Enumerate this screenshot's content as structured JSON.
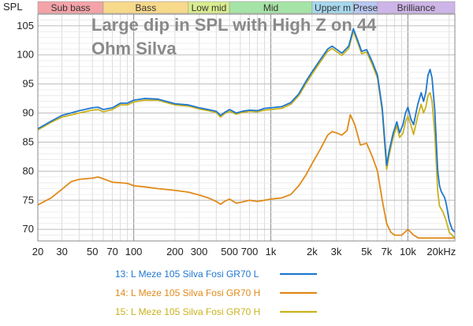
{
  "chart_data": {
    "type": "line",
    "title_lines": [
      "Large dip in SPL with High Z on 44",
      "Ohm Silva"
    ],
    "ylabel": "SPL",
    "xlabel": "",
    "x_scale": "log",
    "xlim": [
      20,
      22000
    ],
    "ylim": [
      68,
      107
    ],
    "x_ticks": [
      {
        "v": 20,
        "label": "20"
      },
      {
        "v": 30,
        "label": "30"
      },
      {
        "v": 50,
        "label": "50"
      },
      {
        "v": 70,
        "label": "70"
      },
      {
        "v": 100,
        "label": "100"
      },
      {
        "v": 200,
        "label": "200"
      },
      {
        "v": 300,
        "label": "300"
      },
      {
        "v": 500,
        "label": "500"
      },
      {
        "v": 700,
        "label": "700"
      },
      {
        "v": 1000,
        "label": "1k"
      },
      {
        "v": 2000,
        "label": "2k"
      },
      {
        "v": 3000,
        "label": "3k"
      },
      {
        "v": 5000,
        "label": "5k"
      },
      {
        "v": 7000,
        "label": "7k"
      },
      {
        "v": 10000,
        "label": "10k"
      },
      {
        "v": 20000,
        "label": "20kHz"
      }
    ],
    "y_ticks": [
      {
        "v": 70,
        "label": "70"
      },
      {
        "v": 75,
        "label": "75"
      },
      {
        "v": 80,
        "label": "80"
      },
      {
        "v": 85,
        "label": "85"
      },
      {
        "v": 90,
        "label": "90"
      },
      {
        "v": 95,
        "label": "95"
      },
      {
        "v": 100,
        "label": "100"
      },
      {
        "v": 105,
        "label": "105"
      }
    ],
    "bands": [
      {
        "label": "Sub bass",
        "from": 20,
        "to": 60,
        "color": "#f4a3a8"
      },
      {
        "label": "Bass",
        "from": 60,
        "to": 250,
        "color": "#f7d98b"
      },
      {
        "label": "Low mid",
        "from": 250,
        "to": 500,
        "color": "#d9ec8f"
      },
      {
        "label": "Mid",
        "from": 500,
        "to": 2000,
        "color": "#a6e3a6"
      },
      {
        "label": "Upper m",
        "from": 2000,
        "to": 4000,
        "color": "#a6d8ee"
      },
      {
        "label": "Prese",
        "from": 4000,
        "to": 6000,
        "color": "#b9c8f2"
      },
      {
        "label": "Brilliance",
        "from": 6000,
        "to": 22000,
        "color": "#cdb5e8"
      }
    ],
    "grid": true,
    "legend_placement": "bottom",
    "series": [
      {
        "name": "13: L Meze 105 Silva Fosi GR70 L",
        "color": "#1f77d0",
        "points": [
          [
            20,
            87.3
          ],
          [
            25,
            88.6
          ],
          [
            30,
            89.6
          ],
          [
            40,
            90.4
          ],
          [
            50,
            90.9
          ],
          [
            55,
            91.0
          ],
          [
            60,
            90.6
          ],
          [
            70,
            90.9
          ],
          [
            80,
            91.7
          ],
          [
            90,
            91.7
          ],
          [
            100,
            92.2
          ],
          [
            120,
            92.5
          ],
          [
            150,
            92.4
          ],
          [
            200,
            91.6
          ],
          [
            250,
            91.4
          ],
          [
            300,
            90.9
          ],
          [
            350,
            90.6
          ],
          [
            400,
            90.3
          ],
          [
            430,
            89.6
          ],
          [
            460,
            90.1
          ],
          [
            500,
            90.6
          ],
          [
            560,
            90.0
          ],
          [
            620,
            90.3
          ],
          [
            700,
            90.5
          ],
          [
            800,
            90.4
          ],
          [
            900,
            90.8
          ],
          [
            1000,
            90.9
          ],
          [
            1200,
            91.1
          ],
          [
            1400,
            91.8
          ],
          [
            1600,
            93.3
          ],
          [
            1800,
            95.4
          ],
          [
            2000,
            97.1
          ],
          [
            2300,
            99.2
          ],
          [
            2600,
            101.0
          ],
          [
            2800,
            101.5
          ],
          [
            3000,
            101.0
          ],
          [
            3300,
            100.3
          ],
          [
            3700,
            101.5
          ],
          [
            4000,
            104.5
          ],
          [
            4300,
            102.5
          ],
          [
            4600,
            100.6
          ],
          [
            5000,
            100.9
          ],
          [
            5500,
            98.8
          ],
          [
            6000,
            96.5
          ],
          [
            6500,
            90.8
          ],
          [
            6800,
            84.8
          ],
          [
            7000,
            81.0
          ],
          [
            7300,
            83.5
          ],
          [
            7800,
            86.5
          ],
          [
            8300,
            88.5
          ],
          [
            8700,
            86.6
          ],
          [
            9200,
            88.0
          ],
          [
            9600,
            90.0
          ],
          [
            10000,
            91.0
          ],
          [
            10500,
            89.0
          ],
          [
            11000,
            88.0
          ],
          [
            11800,
            91.5
          ],
          [
            12500,
            93.5
          ],
          [
            13000,
            92.0
          ],
          [
            13500,
            93.5
          ],
          [
            14000,
            96.5
          ],
          [
            14500,
            97.5
          ],
          [
            15000,
            96.0
          ],
          [
            15700,
            90.5
          ],
          [
            16500,
            80.0
          ],
          [
            17000,
            77.5
          ],
          [
            17500,
            76.5
          ],
          [
            18000,
            76.0
          ],
          [
            18500,
            75.5
          ],
          [
            19000,
            74.5
          ],
          [
            20000,
            71.5
          ],
          [
            21000,
            70.0
          ],
          [
            22000,
            69.5
          ]
        ]
      },
      {
        "name": "14: L Meze 105 Silva Fosi GR70 H",
        "color": "#e08a18",
        "points": [
          [
            20,
            74.2
          ],
          [
            25,
            75.4
          ],
          [
            30,
            76.9
          ],
          [
            35,
            78.2
          ],
          [
            40,
            78.6
          ],
          [
            50,
            78.8
          ],
          [
            55,
            79.0
          ],
          [
            60,
            78.7
          ],
          [
            70,
            78.1
          ],
          [
            80,
            78.0
          ],
          [
            90,
            77.9
          ],
          [
            100,
            77.5
          ],
          [
            120,
            77.3
          ],
          [
            150,
            77.0
          ],
          [
            200,
            76.7
          ],
          [
            250,
            76.4
          ],
          [
            300,
            75.9
          ],
          [
            350,
            75.4
          ],
          [
            400,
            74.8
          ],
          [
            430,
            74.3
          ],
          [
            460,
            74.8
          ],
          [
            500,
            75.2
          ],
          [
            560,
            74.5
          ],
          [
            620,
            74.7
          ],
          [
            700,
            75.0
          ],
          [
            800,
            74.8
          ],
          [
            900,
            75.0
          ],
          [
            1000,
            75.2
          ],
          [
            1200,
            75.4
          ],
          [
            1400,
            76.0
          ],
          [
            1600,
            77.5
          ],
          [
            1800,
            79.3
          ],
          [
            2000,
            81.3
          ],
          [
            2300,
            83.8
          ],
          [
            2600,
            86.2
          ],
          [
            2800,
            86.8
          ],
          [
            3000,
            86.6
          ],
          [
            3300,
            86.2
          ],
          [
            3600,
            87.0
          ],
          [
            3800,
            89.7
          ],
          [
            4100,
            88.0
          ],
          [
            4500,
            84.5
          ],
          [
            5000,
            84.8
          ],
          [
            5500,
            82.5
          ],
          [
            6000,
            80.0
          ],
          [
            6500,
            75.0
          ],
          [
            7000,
            71.0
          ],
          [
            7500,
            69.5
          ],
          [
            8000,
            69.0
          ],
          [
            9000,
            69.0
          ],
          [
            10000,
            70.0
          ],
          [
            11000,
            69.0
          ],
          [
            12000,
            68.5
          ],
          [
            14000,
            68.5
          ],
          [
            16000,
            68.5
          ],
          [
            22000,
            68.5
          ]
        ]
      },
      {
        "name": "15: L Meze 105 Silva Fosi GR70 H",
        "color": "#c9b21c",
        "points": [
          [
            20,
            87.1
          ],
          [
            25,
            88.4
          ],
          [
            30,
            89.3
          ],
          [
            40,
            90.0
          ],
          [
            50,
            90.5
          ],
          [
            55,
            90.6
          ],
          [
            60,
            90.2
          ],
          [
            70,
            90.6
          ],
          [
            80,
            91.4
          ],
          [
            90,
            91.4
          ],
          [
            100,
            91.9
          ],
          [
            120,
            92.2
          ],
          [
            150,
            92.2
          ],
          [
            200,
            91.4
          ],
          [
            250,
            91.2
          ],
          [
            300,
            90.7
          ],
          [
            350,
            90.4
          ],
          [
            400,
            90.1
          ],
          [
            430,
            89.3
          ],
          [
            460,
            89.9
          ],
          [
            500,
            90.3
          ],
          [
            560,
            89.8
          ],
          [
            620,
            90.1
          ],
          [
            700,
            90.3
          ],
          [
            800,
            90.2
          ],
          [
            900,
            90.5
          ],
          [
            1000,
            90.6
          ],
          [
            1200,
            90.8
          ],
          [
            1400,
            91.5
          ],
          [
            1600,
            93.0
          ],
          [
            1800,
            95.0
          ],
          [
            2000,
            96.7
          ],
          [
            2300,
            98.8
          ],
          [
            2600,
            100.6
          ],
          [
            2800,
            101.1
          ],
          [
            3000,
            100.6
          ],
          [
            3300,
            99.9
          ],
          [
            3700,
            101.1
          ],
          [
            4000,
            104.1
          ],
          [
            4300,
            102.1
          ],
          [
            4600,
            100.2
          ],
          [
            5000,
            100.5
          ],
          [
            5500,
            98.3
          ],
          [
            6000,
            96.0
          ],
          [
            6500,
            90.3
          ],
          [
            6800,
            84.0
          ],
          [
            7000,
            80.3
          ],
          [
            7300,
            82.8
          ],
          [
            7800,
            85.8
          ],
          [
            8300,
            87.8
          ],
          [
            8700,
            85.8
          ],
          [
            9200,
            86.5
          ],
          [
            9600,
            88.5
          ],
          [
            10000,
            89.5
          ],
          [
            10500,
            88.0
          ],
          [
            11000,
            86.3
          ],
          [
            11800,
            89.5
          ],
          [
            12500,
            91.5
          ],
          [
            13000,
            90.0
          ],
          [
            13500,
            91.0
          ],
          [
            14000,
            93.0
          ],
          [
            14500,
            93.5
          ],
          [
            15000,
            92.0
          ],
          [
            15700,
            86.5
          ],
          [
            16500,
            76.5
          ],
          [
            17000,
            74.0
          ],
          [
            17500,
            73.5
          ],
          [
            18000,
            73.0
          ],
          [
            19000,
            71.5
          ],
          [
            20000,
            69.5
          ],
          [
            22000,
            68.5
          ]
        ]
      }
    ]
  }
}
